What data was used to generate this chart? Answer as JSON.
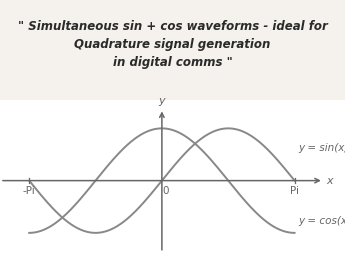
{
  "title_line1": "\" Simultaneous sin + cos waveforms - ideal for",
  "title_line2": "Quadrature signal generation",
  "title_line3": "in digital comms \"",
  "title_fontsize": 8.5,
  "title_color": "#2a2a2a",
  "background_color": "#ffffff",
  "fig_background": "#f5f2ee",
  "curve_color": "#888888",
  "curve_linewidth": 1.4,
  "axis_color": "#666666",
  "label_sin": "y = sin(x)",
  "label_cos": "y = cos(x)",
  "label_x": "x",
  "label_y": "y",
  "label_origin": "0",
  "label_pi": "Pi",
  "label_neg_pi": "-Pi",
  "label_fontsize": 7.5,
  "axis_label_fontsize": 8
}
